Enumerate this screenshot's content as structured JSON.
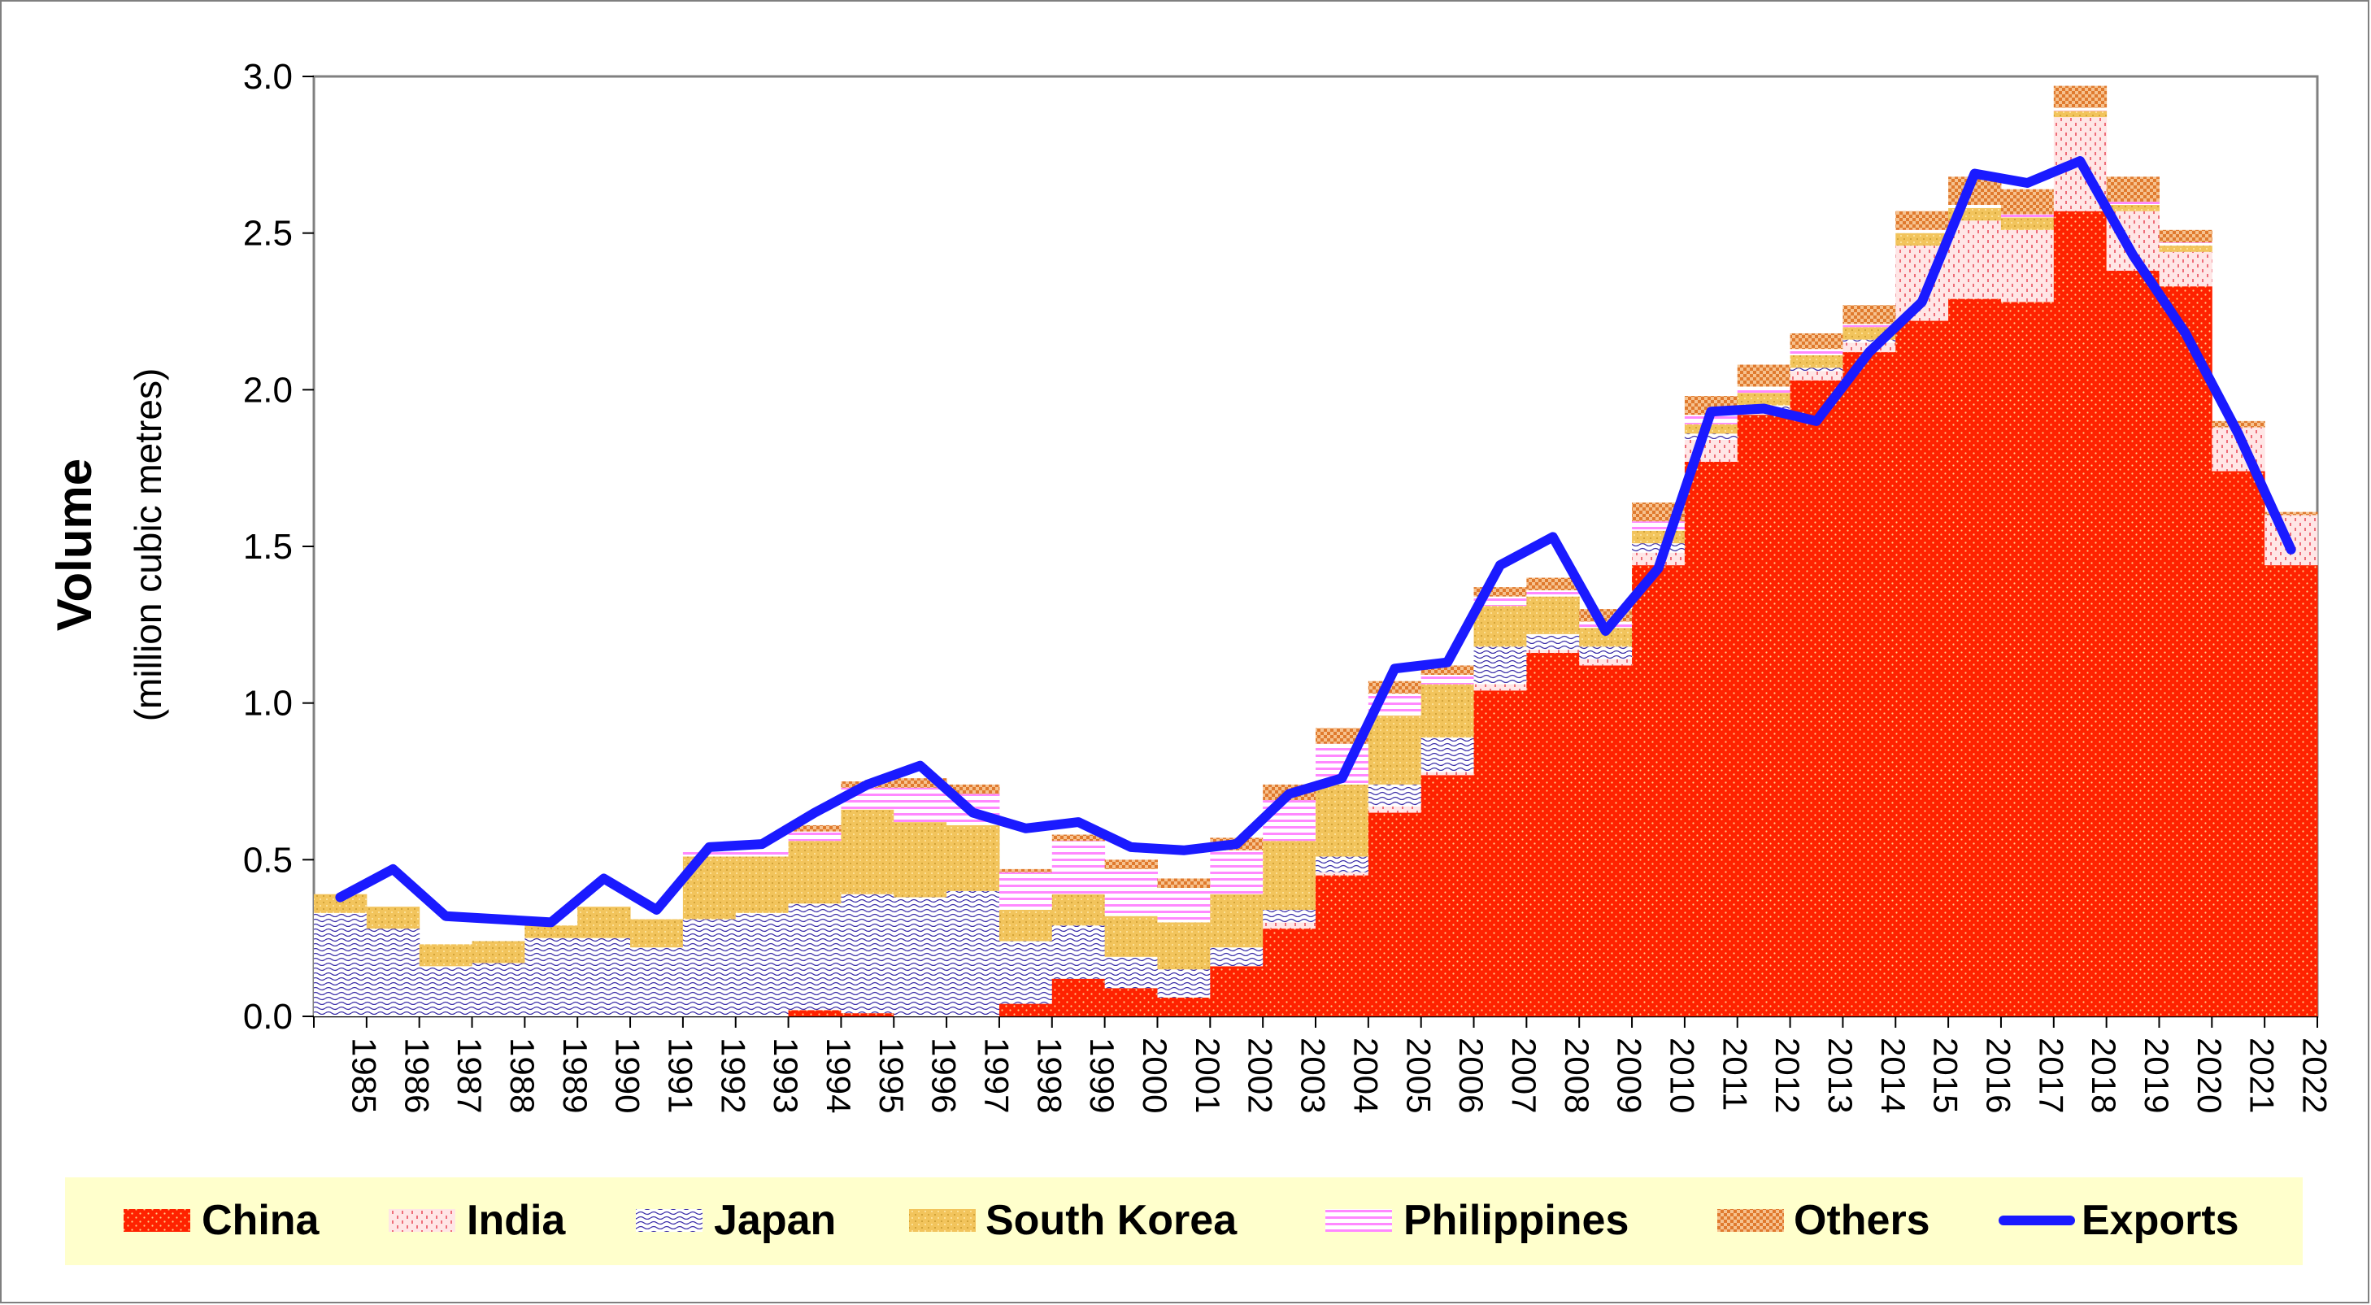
{
  "chart_data": {
    "type": "bar",
    "stacked": true,
    "categories": [
      "1985",
      "1986",
      "1987",
      "1988",
      "1989",
      "1990",
      "1991",
      "1992",
      "1993",
      "1994",
      "1995",
      "1996",
      "1997",
      "1998",
      "1999",
      "2000",
      "2001",
      "2002",
      "2003",
      "2004",
      "2005",
      "2006",
      "2007",
      "2008",
      "2009",
      "2010",
      "2011",
      "2012",
      "2013",
      "2014",
      "2015",
      "2016",
      "2017",
      "2018",
      "2019",
      "2020",
      "2021",
      "2022"
    ],
    "ylabel": "Volume",
    "ylabel_sub": "(million cubic metres)",
    "ylim": [
      0,
      3.0
    ],
    "yticks": [
      "0.0",
      "0.5",
      "1.0",
      "1.5",
      "2.0",
      "2.5",
      "3.0"
    ],
    "grid": false,
    "legend_position": "bottom",
    "series": [
      {
        "name": "China",
        "color": "#ff2200",
        "pattern": "dots-red",
        "values": [
          0,
          0,
          0,
          0,
          0,
          0,
          0,
          0,
          0,
          0.02,
          0.01,
          0,
          0,
          0.04,
          0.12,
          0.09,
          0.06,
          0.16,
          0.28,
          0.45,
          0.65,
          0.77,
          1.04,
          1.16,
          1.12,
          1.44,
          1.77,
          1.92,
          2.03,
          2.12,
          2.22,
          2.29,
          2.28,
          2.57,
          2.38,
          2.33,
          1.74,
          1.44
        ]
      },
      {
        "name": "India",
        "color": "#ffdede",
        "pattern": "ticks-pink",
        "values": [
          0,
          0,
          0,
          0,
          0,
          0,
          0,
          0,
          0,
          0,
          0,
          0,
          0,
          0,
          0,
          0,
          0,
          0,
          0.02,
          0.01,
          0.02,
          0.01,
          0.02,
          0.01,
          0.02,
          0.04,
          0.07,
          0.02,
          0.03,
          0.03,
          0.24,
          0.25,
          0.23,
          0.3,
          0.19,
          0.11,
          0.14,
          0.16
        ]
      },
      {
        "name": "Japan",
        "color": "#ffffff",
        "pattern": "waves-blue",
        "values": [
          0.33,
          0.28,
          0.16,
          0.17,
          0.25,
          0.25,
          0.22,
          0.31,
          0.33,
          0.34,
          0.38,
          0.38,
          0.4,
          0.2,
          0.17,
          0.1,
          0.09,
          0.06,
          0.04,
          0.05,
          0.07,
          0.11,
          0.12,
          0.05,
          0.04,
          0.03,
          0.02,
          0.01,
          0.01,
          0.01,
          0,
          0,
          0,
          0,
          0,
          0,
          0,
          0
        ]
      },
      {
        "name": "South Korea",
        "color": "#f2c45c",
        "pattern": "dots-gold",
        "values": [
          0.06,
          0.07,
          0.07,
          0.07,
          0.04,
          0.1,
          0.09,
          0.2,
          0.18,
          0.2,
          0.27,
          0.24,
          0.21,
          0.1,
          0.1,
          0.13,
          0.15,
          0.17,
          0.22,
          0.23,
          0.22,
          0.17,
          0.13,
          0.12,
          0.06,
          0.04,
          0.03,
          0.04,
          0.04,
          0.04,
          0.04,
          0.04,
          0.04,
          0.02,
          0.02,
          0.02,
          0,
          0
        ]
      },
      {
        "name": "Philippines",
        "color": "#ff99ff",
        "pattern": "stripes-pink",
        "values": [
          0,
          0,
          0,
          0,
          0,
          0,
          0,
          0.02,
          0.02,
          0.03,
          0.07,
          0.11,
          0.1,
          0.12,
          0.17,
          0.15,
          0.11,
          0.14,
          0.13,
          0.13,
          0.07,
          0.03,
          0.03,
          0.02,
          0.02,
          0.03,
          0.03,
          0.02,
          0.02,
          0.01,
          0.01,
          0.01,
          0.01,
          0.01,
          0.01,
          0.01,
          0,
          0
        ]
      },
      {
        "name": "Others",
        "color": "#e07a2e",
        "pattern": "checks-orange",
        "values": [
          0,
          0,
          0,
          0,
          0,
          0,
          0,
          0,
          0,
          0.02,
          0.02,
          0.03,
          0.03,
          0.01,
          0.02,
          0.03,
          0.03,
          0.04,
          0.05,
          0.05,
          0.04,
          0.03,
          0.03,
          0.04,
          0.04,
          0.06,
          0.06,
          0.07,
          0.05,
          0.06,
          0.06,
          0.09,
          0.08,
          0.07,
          0.08,
          0.04,
          0.02,
          0.01
        ]
      }
    ],
    "line_series": {
      "name": "Exports",
      "color": "#1a1aff",
      "values": [
        0.38,
        0.47,
        0.32,
        0.31,
        0.3,
        0.44,
        0.34,
        0.54,
        0.55,
        0.65,
        0.74,
        0.8,
        0.65,
        0.6,
        0.62,
        0.54,
        0.53,
        0.55,
        0.71,
        0.76,
        1.11,
        1.13,
        1.44,
        1.53,
        1.23,
        1.43,
        1.93,
        1.94,
        1.9,
        2.12,
        2.28,
        2.69,
        2.66,
        2.73,
        2.43,
        2.18,
        1.86,
        1.49
      ]
    }
  }
}
